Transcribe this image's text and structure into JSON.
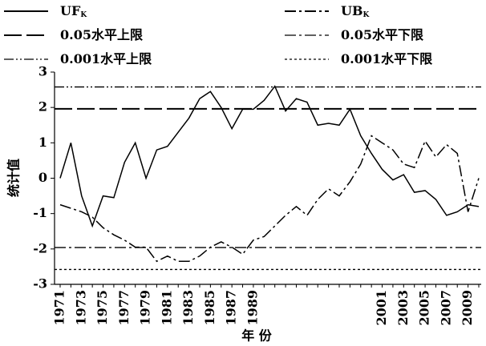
{
  "chart_data": {
    "type": "line",
    "x_label": "年 份",
    "y_label": "统计值",
    "categories": [
      "1971",
      null,
      "1973",
      null,
      "1975",
      null,
      "1977",
      null,
      "1979",
      null,
      "1981",
      null,
      "1983",
      null,
      "1985",
      null,
      "1987",
      null,
      "1989",
      null,
      null,
      null,
      null,
      null,
      null,
      null,
      null,
      null,
      null,
      null,
      "2001",
      null,
      "2003",
      null,
      "2005",
      null,
      "2007",
      null,
      "2009",
      null
    ],
    "series": [
      {
        "name": "UF",
        "name_sub": "K",
        "color": "#000000",
        "dash": "solid",
        "values": [
          0,
          1.0,
          -0.5,
          -1.35,
          -0.5,
          -0.55,
          0.45,
          1.0,
          0,
          0.8,
          0.9,
          1.3,
          1.7,
          2.25,
          2.45,
          2.0,
          1.4,
          1.95,
          1.95,
          2.2,
          2.6,
          1.9,
          2.25,
          2.15,
          1.5,
          1.55,
          1.5,
          1.95,
          1.2,
          0.7,
          0.25,
          -0.05,
          0.1,
          -0.4,
          -0.35,
          -0.6,
          -1.05,
          -0.95,
          -0.75,
          -0.8
        ]
      },
      {
        "name": "UB",
        "name_sub": "K",
        "color": "#000000",
        "dash": "dashdot",
        "values": [
          -0.75,
          -0.85,
          -0.95,
          -1.1,
          -1.4,
          -1.6,
          -1.75,
          -1.95,
          -1.95,
          -2.35,
          -2.2,
          -2.35,
          -2.35,
          -2.2,
          -1.95,
          -1.8,
          -1.95,
          -2.15,
          -1.75,
          -1.65,
          -1.35,
          -1.05,
          -0.8,
          -1.05,
          -0.6,
          -0.3,
          -0.5,
          -0.1,
          0.4,
          1.2,
          1.0,
          0.8,
          0.4,
          0.3,
          1.05,
          0.6,
          0.95,
          0.7,
          -0.95,
          0.0
        ]
      }
    ],
    "reference_lines": [
      {
        "name": "0.05水平上限",
        "value": 1.96,
        "dash": "longdash"
      },
      {
        "name": "0.05水平下限",
        "value": -1.96,
        "dash": "dashdot"
      },
      {
        "name": "0.001水平上限",
        "value": 2.58,
        "dash": "dashdotdot"
      },
      {
        "name": "0.001水平下限",
        "value": -2.58,
        "dash": "dotted"
      }
    ],
    "ylim": [
      -3,
      3
    ],
    "yticks": [
      -3,
      -2,
      -1,
      0,
      1,
      2,
      3
    ],
    "grid": false
  }
}
